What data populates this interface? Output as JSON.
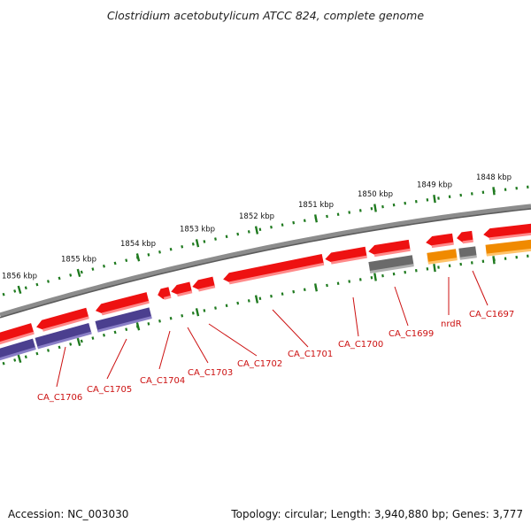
{
  "title": "Clostridium acetobutylicum ATCC 824, complete genome",
  "footer": {
    "accession": "Accession: NC_003030",
    "summary": "Topology: circular; Length: 3,940,880 bp; Genes: 3,777"
  },
  "colors": {
    "backbone": "#7a7a7a",
    "ruler": "#1f7a1f",
    "gene_red": "#ee1111",
    "gene_purple": "#4b3f8f",
    "gene_gray": "#6a6a6a",
    "gene_orange": "#f08a00",
    "label": "#cc1010"
  },
  "ruler_labels": [
    "1856 kbp",
    "1855 kbp",
    "1854 kbp",
    "1853 kbp",
    "1852 kbp",
    "1851 kbp",
    "1850 kbp",
    "1849 kbp",
    "1848 kbp"
  ],
  "gene_labels": [
    "CA_C1706",
    "CA_C1705",
    "CA_C1704",
    "CA_C1703",
    "CA_C1702",
    "CA_C1701",
    "CA_C1700",
    "CA_C1699",
    "nrdR",
    "CA_C1697"
  ]
}
